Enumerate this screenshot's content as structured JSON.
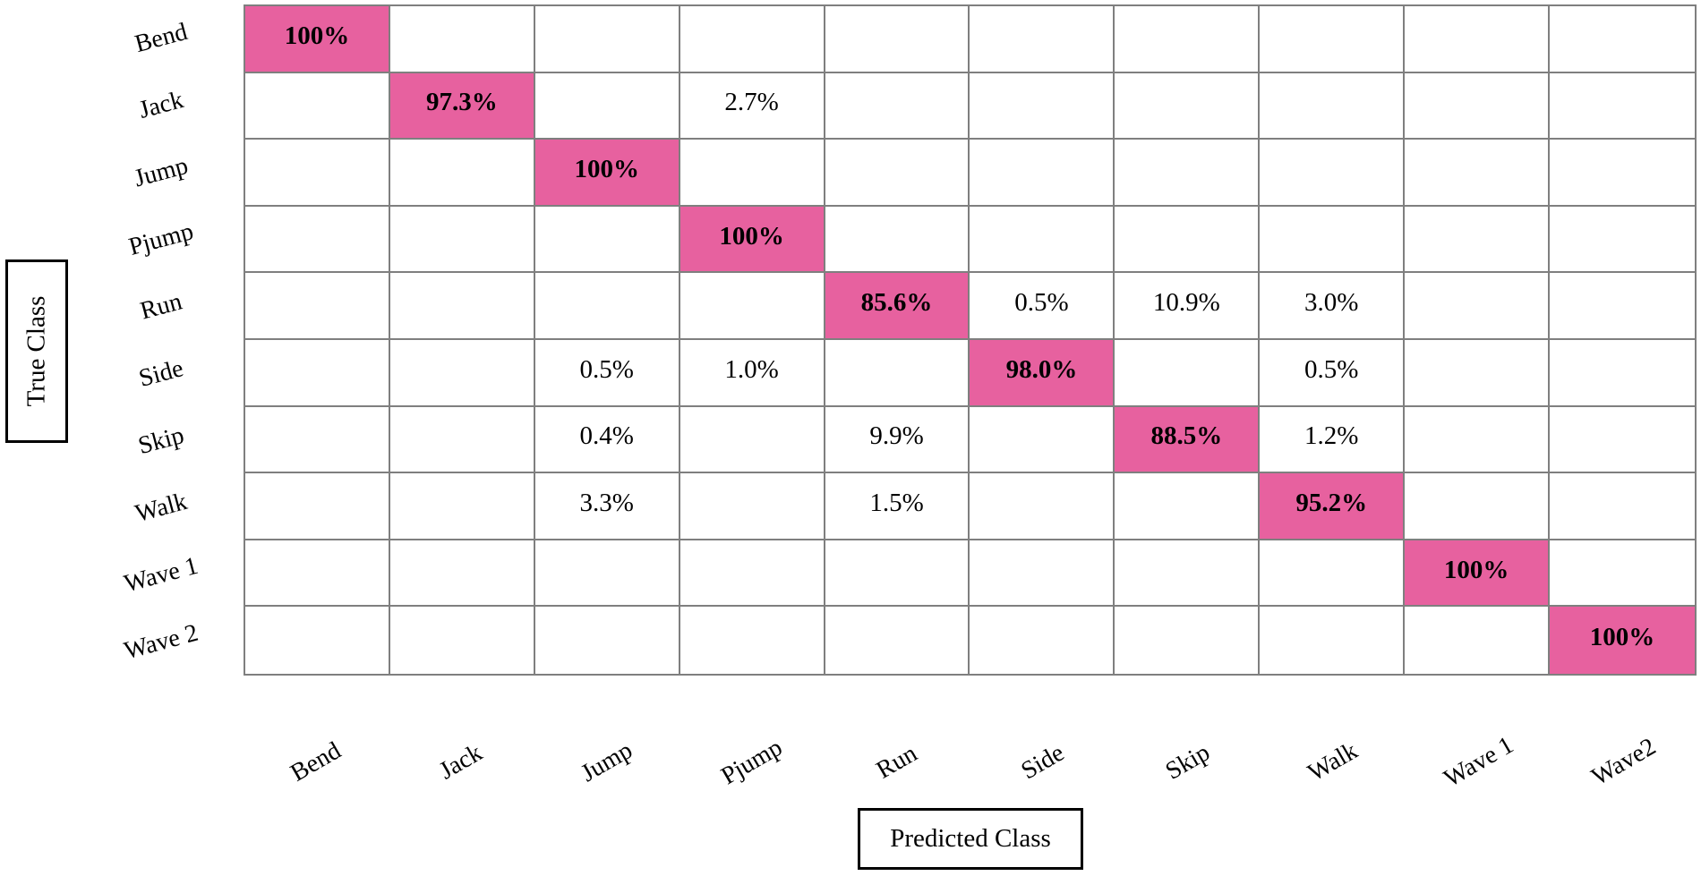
{
  "chart_data": {
    "type": "heatmap",
    "xlabel": "Predicted Class",
    "ylabel": "True Class",
    "row_labels": [
      "Bend",
      "Jack",
      "Jump",
      "Pjump",
      "Run",
      "Side",
      "Skip",
      "Walk",
      "Wave 1",
      "Wave 2"
    ],
    "col_labels": [
      "Bend",
      "Jack",
      "Jump",
      "Pjump",
      "Run",
      "Side",
      "Skip",
      "Walk",
      "Wave 1",
      "Wave2"
    ],
    "matrix": [
      [
        "100%",
        "",
        "",
        "",
        "",
        "",
        "",
        "",
        "",
        ""
      ],
      [
        "",
        "97.3%",
        "",
        "2.7%",
        "",
        "",
        "",
        "",
        "",
        ""
      ],
      [
        "",
        "",
        "100%",
        "",
        "",
        "",
        "",
        "",
        "",
        ""
      ],
      [
        "",
        "",
        "",
        "100%",
        "",
        "",
        "",
        "",
        "",
        ""
      ],
      [
        "",
        "",
        "",
        "",
        "85.6%",
        "0.5%",
        "10.9%",
        "3.0%",
        "",
        ""
      ],
      [
        "",
        "",
        "0.5%",
        "1.0%",
        "",
        "98.0%",
        "",
        "0.5%",
        "",
        ""
      ],
      [
        "",
        "",
        "0.4%",
        "",
        "9.9%",
        "",
        "88.5%",
        "1.2%",
        "",
        ""
      ],
      [
        "",
        "",
        "3.3%",
        "",
        "1.5%",
        "",
        "",
        "95.2%",
        "",
        ""
      ],
      [
        "",
        "",
        "",
        "",
        "",
        "",
        "",
        "",
        "100%",
        ""
      ],
      [
        "",
        "",
        "",
        "",
        "",
        "",
        "",
        "",
        "",
        "100%"
      ]
    ],
    "highlight": "diagonal",
    "grid": true,
    "legend": "none",
    "colors": {
      "diagonal_fill": "#e7619f",
      "grid_line": "#7f7f7f",
      "text": "#000000",
      "background": "#ffffff"
    }
  }
}
